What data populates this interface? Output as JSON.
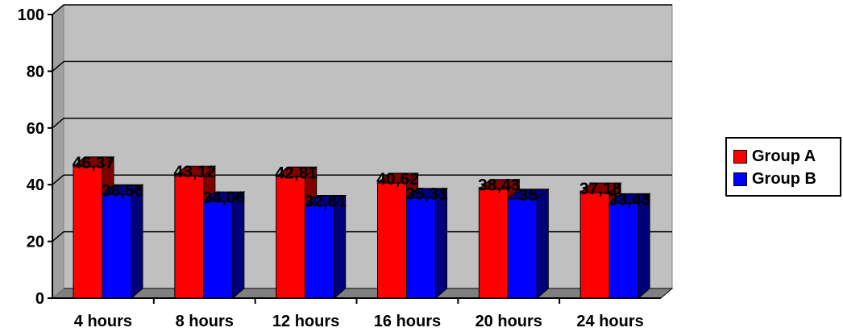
{
  "chart_data": {
    "type": "bar",
    "categories": [
      "4 hours",
      "8 hours",
      "12 hours",
      "16 hours",
      "20 hours",
      "24 hours"
    ],
    "series": [
      {
        "name": "Group A",
        "values": [
          46.37,
          43.12,
          42.81,
          40.62,
          38.43,
          37.18
        ],
        "labels": [
          "46,37",
          "43,12",
          "42,81",
          "40,62",
          "38,43",
          "37,18"
        ]
      },
      {
        "name": "Group B",
        "values": [
          36.56,
          34.06,
          32.81,
          35.31,
          35,
          33.43
        ],
        "labels": [
          "36,56",
          "34,06",
          "32,81",
          "35,31",
          "35",
          "33,43"
        ]
      }
    ],
    "yticks": [
      "0",
      "20",
      "40",
      "60",
      "80",
      "100"
    ],
    "ylim": [
      0,
      100
    ],
    "title": "",
    "xlabel": "",
    "ylabel": "",
    "grid": true,
    "legend_position": "right",
    "colors": {
      "series_a": "#ff0000",
      "series_a_dark": "#800000",
      "series_b": "#0000ff",
      "series_b_dark": "#00007a",
      "wall": "#c0c0c0",
      "floor": "#808080"
    }
  }
}
